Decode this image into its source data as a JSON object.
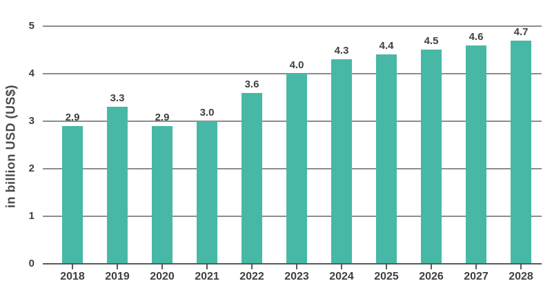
{
  "chart_data": {
    "type": "bar",
    "title": "",
    "categories": [
      "2018",
      "2019",
      "2020",
      "2021",
      "2022",
      "2023",
      "2024",
      "2025",
      "2026",
      "2027",
      "2028"
    ],
    "values": [
      2.9,
      3.3,
      2.9,
      3.0,
      3.6,
      4.0,
      4.3,
      4.4,
      4.5,
      4.6,
      4.7
    ],
    "value_labels": [
      "2.9",
      "3.3",
      "2.9",
      "3.0",
      "3.6",
      "4.0",
      "4.3",
      "4.4",
      "4.5",
      "4.6",
      "4.7"
    ],
    "xlabel": "",
    "ylabel": "in billion USD (US$)",
    "ylim": [
      0,
      5
    ],
    "yticks": [
      0,
      1,
      2,
      3,
      4,
      5
    ],
    "grid": true,
    "legend": false,
    "colors": {
      "bar": "#47B8A6",
      "gridline": "#8c8c8c",
      "axis": "#595959",
      "text": "#3f3f3f"
    }
  }
}
